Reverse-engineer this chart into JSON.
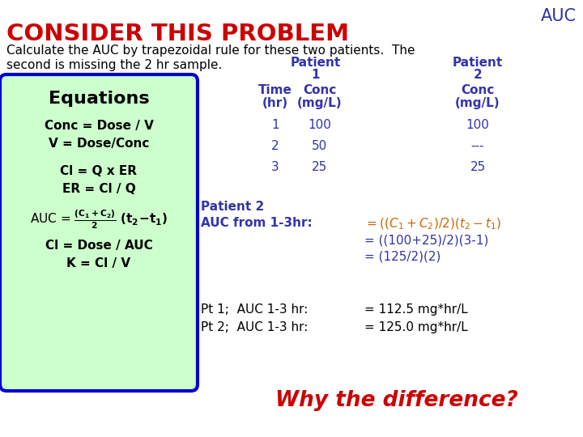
{
  "bg_color": "#ffffff",
  "title_text": "CONSIDER THIS PROBLEM",
  "title_color": "#cc0000",
  "auc_text": "AUC",
  "auc_color": "#3333aa",
  "subtitle_line1": "Calculate the AUC by trapezoidal rule for these two patients.  The",
  "subtitle_line2": "second is missing the 2 hr sample.",
  "subtitle_color": "#000000",
  "equations_box_bg": "#ccffcc",
  "equations_box_border": "#0000cc",
  "equations_title": "Equations",
  "eq_color": "#000000",
  "patient_header_color": "#3333aa",
  "table_header_color": "#3333aa",
  "table_data_color": "#3333aa",
  "table_rows": [
    [
      "1",
      "100",
      "100"
    ],
    [
      "2",
      "50",
      "---"
    ],
    [
      "3",
      "25",
      "25"
    ]
  ],
  "patient2_label_color": "#3333aa",
  "auc_label_color": "#3333aa",
  "formula_color": "#cc6600",
  "formula_plain_color": "#3333aa",
  "results_label_color": "#000000",
  "results_value_color": "#000000",
  "pt1_label": "Pt 1;  AUC 1-3 hr:",
  "pt1_value": "= 112.5 mg*hr/L",
  "pt2_label": "Pt 2;  AUC 1-3 hr:",
  "pt2_value": "= 125.0 mg*hr/L",
  "why_text": "Why the difference?",
  "why_color": "#cc0000"
}
